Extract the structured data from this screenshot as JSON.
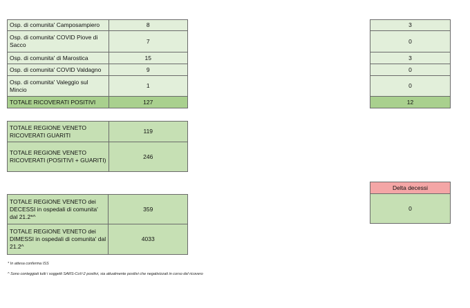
{
  "top_table": {
    "rows": [
      {
        "label": "Osp. di comunita' Camposampiero",
        "value": "8",
        "right": "3"
      },
      {
        "label": "Osp. di comunita' COVID Piove di Sacco",
        "value": "7",
        "right": "0"
      },
      {
        "label": "Osp. di comunita' di Marostica",
        "value": "15",
        "right": "3"
      },
      {
        "label": "Osp. di comunita' COVID Valdagno",
        "value": "9",
        "right": "0"
      },
      {
        "label": "Osp. di comunita' Valeggio sul Mincio",
        "value": "1",
        "right": "0"
      }
    ],
    "total": {
      "label": "TOTALE RICOVERATI POSITIVI",
      "value": "127",
      "right": "12"
    }
  },
  "region_table": {
    "rows": [
      {
        "label": "TOTALE REGIONE VENETO RICOVERATI GUARITI",
        "value": "119"
      },
      {
        "label": "TOTALE REGIONE VENETO RICOVERATI (POSITIVI + GUARITI)",
        "value": "246"
      }
    ]
  },
  "deaths_table": {
    "rows": [
      {
        "label": "TOTALE REGIONE VENETO dei DECESSI in ospedali di comunita' dal 21.2*^",
        "value": "359"
      },
      {
        "label": "TOTALE REGIONE VENETO dei DIMESSI in ospedali di comunita' dal 21.2^",
        "value": "4033"
      }
    ]
  },
  "delta": {
    "header": "Delta decessi",
    "value": "0"
  },
  "notes": {
    "note1": "* In attesa conferma ISS",
    "note2": "^ Sono conteggiati tutti i soggetti SARS-CoV-2 positivi, sia attualmente positivi che negativizzati in corso del ricovero"
  }
}
